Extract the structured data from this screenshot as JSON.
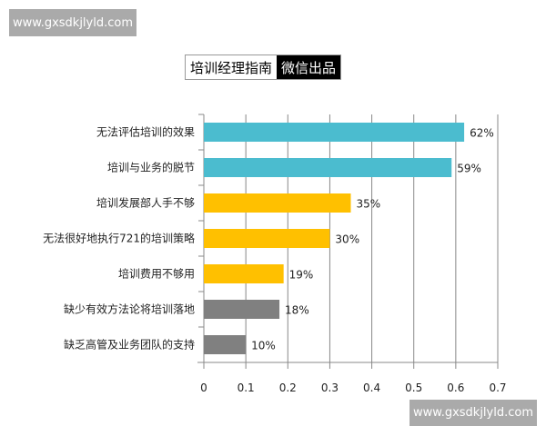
{
  "watermark": "www.gxsdkjlyld.com",
  "title_box": {
    "left": "培训经理指南",
    "right": "微信出品"
  },
  "chart_data": {
    "type": "bar",
    "orientation": "horizontal",
    "categories": [
      "无法评估培训的效果",
      "培训与业务的脱节",
      "培训发展部人手不够",
      "无法很好地执行721的培训策略",
      "培训费用不够用",
      "缺少有效方法论将培训落地",
      "缺乏高管及业务团队的支持"
    ],
    "values": [
      0.62,
      0.59,
      0.35,
      0.3,
      0.19,
      0.18,
      0.1
    ],
    "data_labels": [
      "62%",
      "59%",
      "35%",
      "30%",
      "19%",
      "18%",
      "10%"
    ],
    "bar_colors": [
      "#4bbccf",
      "#4bbccf",
      "#ffc000",
      "#ffc000",
      "#ffc000",
      "#808080",
      "#808080"
    ],
    "xlim": [
      0,
      0.7
    ],
    "x_ticks": [
      "0",
      "0.1",
      "0.2",
      "0.3",
      "0.4",
      "0.5",
      "0.6",
      "0.7"
    ],
    "grid": "vertical",
    "title": "",
    "xlabel": "",
    "ylabel": ""
  }
}
